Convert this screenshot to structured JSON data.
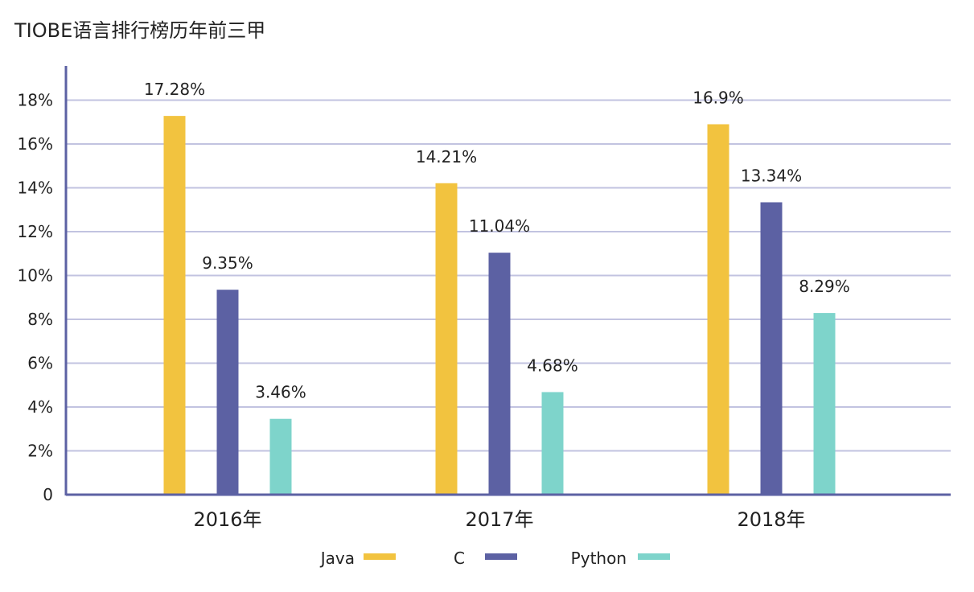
{
  "chart_data": {
    "type": "bar",
    "title": "TIOBE语言排行榜历年前三甲",
    "xlabel": "",
    "ylabel": "",
    "categories": [
      "2016年",
      "2017年",
      "2018年"
    ],
    "series": [
      {
        "name": "Java",
        "values": [
          17.28,
          14.21,
          16.9
        ],
        "labels": [
          "17.28%",
          "14.21%",
          "16.9%"
        ],
        "color": "#F2C33F"
      },
      {
        "name": "C",
        "values": [
          9.35,
          11.04,
          13.34
        ],
        "labels": [
          "9.35%",
          "11.04%",
          "13.34%"
        ],
        "color": "#5C61A3"
      },
      {
        "name": "Python",
        "values": [
          3.46,
          4.68,
          8.29
        ],
        "labels": [
          "3.46%",
          "4.68%",
          "8.29%"
        ],
        "color": "#7ED4CB"
      }
    ],
    "ylim": [
      0,
      18
    ],
    "yticks": [
      0,
      2,
      4,
      6,
      8,
      10,
      12,
      14,
      16,
      18
    ],
    "ytick_labels": [
      "0",
      "2%",
      "4%",
      "6%",
      "8%",
      "10%",
      "12%",
      "14%",
      "16%",
      "18%"
    ],
    "grid": true,
    "legend_position": "bottom-center",
    "colors": {
      "axis": "#5C61A3",
      "grid": "#C2C3E0"
    }
  }
}
